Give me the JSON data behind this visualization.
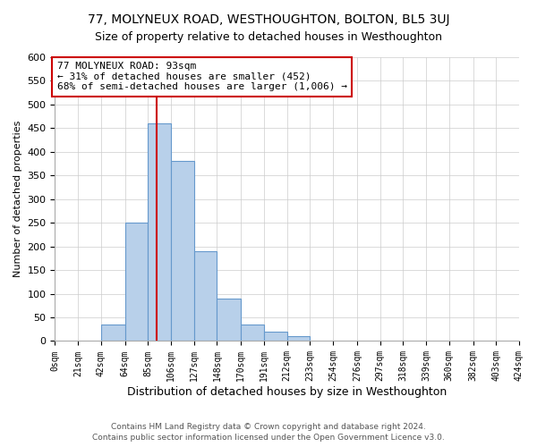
{
  "title": "77, MOLYNEUX ROAD, WESTHOUGHTON, BOLTON, BL5 3UJ",
  "subtitle": "Size of property relative to detached houses in Westhoughton",
  "xlabel": "Distribution of detached houses by size in Westhoughton",
  "ylabel": "Number of detached properties",
  "footnote1": "Contains HM Land Registry data © Crown copyright and database right 2024.",
  "footnote2": "Contains public sector information licensed under the Open Government Licence v3.0.",
  "bar_edges": [
    0,
    21,
    42,
    64,
    85,
    106,
    127,
    148,
    170,
    191,
    212,
    233,
    254,
    276,
    297,
    318,
    339,
    360,
    382,
    403,
    424
  ],
  "bar_heights": [
    0,
    0,
    35,
    250,
    460,
    380,
    190,
    90,
    35,
    20,
    10,
    0,
    0,
    0,
    0,
    0,
    0,
    0,
    0,
    0
  ],
  "bar_color": "#b8d0ea",
  "bar_edge_color": "#6699cc",
  "property_size": 93,
  "vline_color": "#cc0000",
  "annotation_text": "77 MOLYNEUX ROAD: 93sqm\n← 31% of detached houses are smaller (452)\n68% of semi-detached houses are larger (1,006) →",
  "annotation_box_color": "#cc0000",
  "ylim": [
    0,
    600
  ],
  "yticks": [
    0,
    50,
    100,
    150,
    200,
    250,
    300,
    350,
    400,
    450,
    500,
    550,
    600
  ],
  "tick_labels": [
    "0sqm",
    "21sqm",
    "42sqm",
    "64sqm",
    "85sqm",
    "106sqm",
    "127sqm",
    "148sqm",
    "170sqm",
    "191sqm",
    "212sqm",
    "233sqm",
    "254sqm",
    "276sqm",
    "297sqm",
    "318sqm",
    "339sqm",
    "360sqm",
    "382sqm",
    "403sqm",
    "424sqm"
  ],
  "background_color": "#ffffff",
  "grid_color": "#cccccc",
  "title_fontsize": 10,
  "subtitle_fontsize": 9,
  "ylabel_fontsize": 8,
  "xlabel_fontsize": 9
}
